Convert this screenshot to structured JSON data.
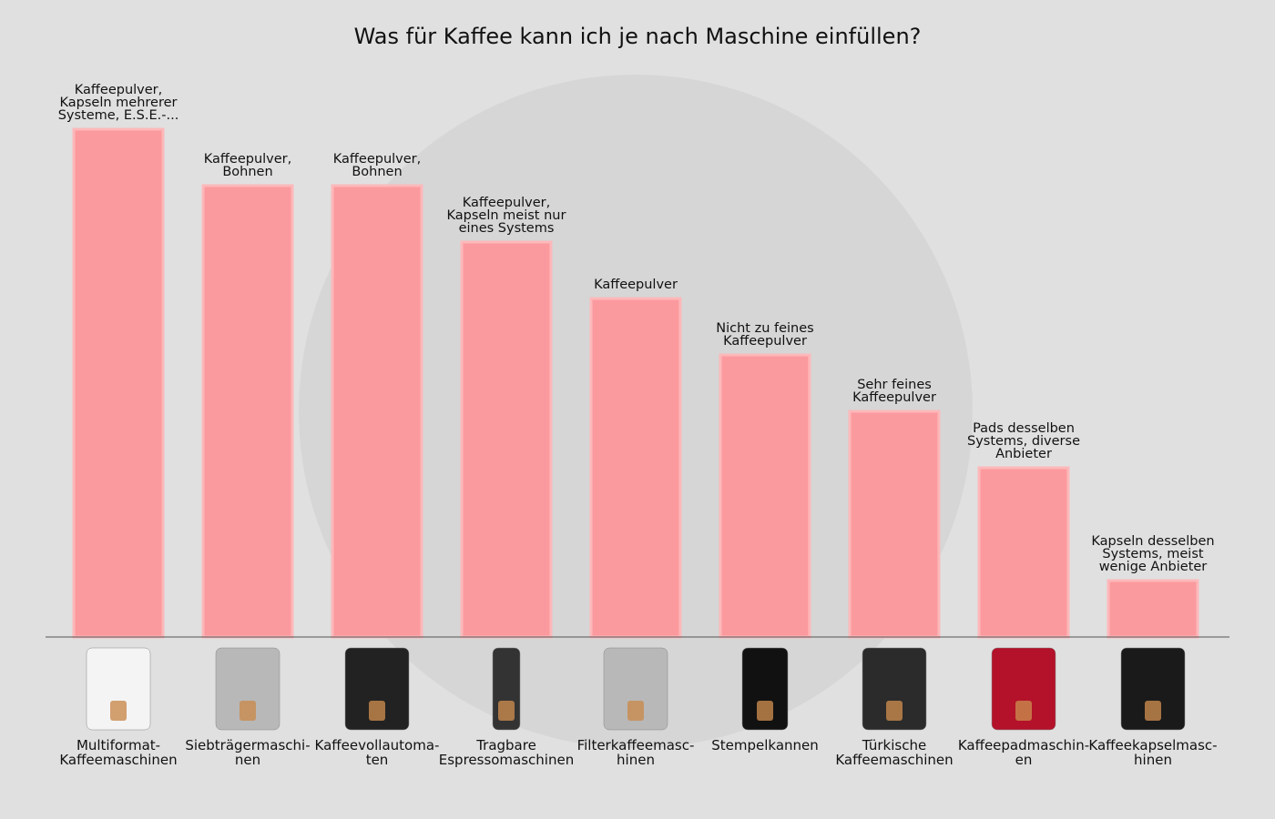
{
  "title": "Was für Kaffee kann ich je nach Maschine einfüllen?",
  "colors": {
    "bar": "#fb9a9e",
    "bar_edge": "#fcb8ba",
    "background": "#e0e0e0",
    "axis": "#555555"
  },
  "chart_data": {
    "type": "bar",
    "title": "Was für Kaffee kann ich je nach Maschine einfüllen?",
    "categories": [
      "Multiformat-\nKaffeemaschinen",
      "Siebträgermaschi-\nnen",
      "Kaffeevollautoma-\nten",
      "Tragbare\nEspressomaschinen",
      "Filterkaffeemasc-\nhinen",
      "Stempelkannen",
      "Türkische\nKaffeemaschinen",
      "Kaffeepadmaschin-\nen",
      "Kaffeekapselmasc-\nhinen"
    ],
    "values": [
      9,
      8,
      8,
      7,
      6,
      5,
      4,
      3,
      1
    ],
    "data_labels": [
      "Kaffeepulver,\nKapseln mehrerer\nSysteme, E.S.E.-...",
      "Kaffeepulver,\nBohnen",
      "Kaffeepulver,\nBohnen",
      "Kaffeepulver,\nKapseln meist nur\neines Systems",
      "Kaffeepulver",
      "Nicht zu feines\nKaffeepulver",
      "Sehr feines\nKaffeepulver",
      "Pads desselben\nSystems, diverse\nAnbieter",
      "Kapseln desselben\nSystems, meist\nwenige Anbieter"
    ],
    "category_icons": [
      "multiformat-machine-icon",
      "portafilter-machine-icon",
      "fully-automatic-machine-icon",
      "portable-espresso-icon",
      "filter-coffee-machine-icon",
      "french-press-icon",
      "turkish-coffee-machine-icon",
      "pad-machine-icon",
      "capsule-machine-icon"
    ],
    "ylim": [
      0,
      9
    ],
    "grid": false,
    "legend": "none",
    "xlabel": "",
    "ylabel": ""
  }
}
